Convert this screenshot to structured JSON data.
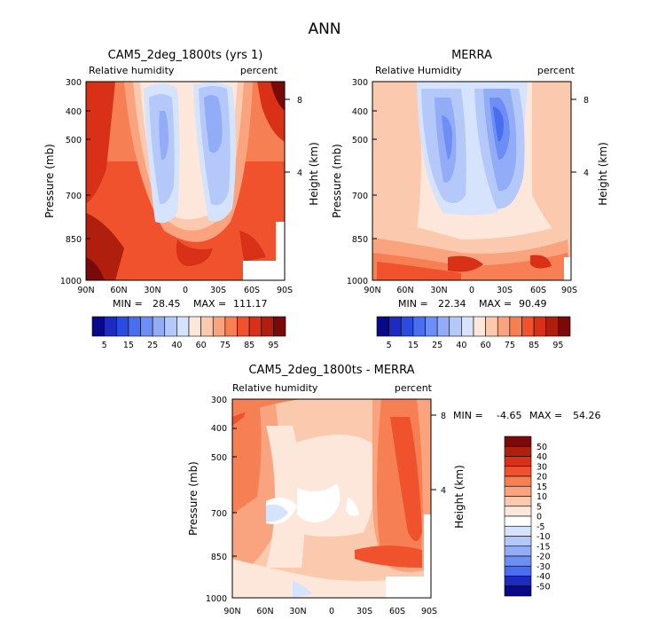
{
  "page_title": "ANN",
  "chart_data": [
    {
      "type": "heatmap",
      "title": "CAM5_2deg_1800ts (yrs 1)",
      "left_string": "Relative humidity",
      "right_string": "percent",
      "ylabel": "Pressure (mb)",
      "ylabel_right": "Height (km)",
      "x_ticks": [
        "90N",
        "60N",
        "30N",
        "0",
        "30S",
        "60S",
        "90S"
      ],
      "y_ticks": [
        "300",
        "400",
        "500",
        "700",
        "850",
        "1000"
      ],
      "y_ticks_right": [
        "8",
        "4"
      ],
      "min_text": "MIN =",
      "min_value": "28.45",
      "max_text": "MAX =",
      "max_value": "111.17",
      "colorbar_labels": [
        "5",
        "15",
        "25",
        "40",
        "60",
        "75",
        "85",
        "95"
      ],
      "colors": [
        "#08088a",
        "#1d2bc0",
        "#2a4be0",
        "#4a6ef0",
        "#6d8ff5",
        "#93acf7",
        "#b5c8fa",
        "#d6e3fc",
        "#fde7da",
        "#fbc9ad",
        "#f9a47f",
        "#f67f54",
        "#f0522d",
        "#d93117",
        "#b01e0e",
        "#7a0a0a"
      ]
    },
    {
      "type": "heatmap",
      "title": "MERRA",
      "left_string": "Relative Humidity",
      "right_string": "percent",
      "ylabel": "Pressure (mb)",
      "ylabel_right": "Height (km)",
      "x_ticks": [
        "90N",
        "60N",
        "30N",
        "0",
        "30S",
        "60S",
        "90S"
      ],
      "y_ticks": [
        "300",
        "400",
        "500",
        "700",
        "850",
        "1000"
      ],
      "y_ticks_right": [
        "8",
        "4"
      ],
      "min_text": "MIN =",
      "min_value": "22.34",
      "max_text": "MAX =",
      "max_value": "90.49",
      "colorbar_labels": [
        "5",
        "15",
        "25",
        "40",
        "60",
        "75",
        "85",
        "95"
      ],
      "colors": [
        "#08088a",
        "#1d2bc0",
        "#2a4be0",
        "#4a6ef0",
        "#6d8ff5",
        "#93acf7",
        "#b5c8fa",
        "#d6e3fc",
        "#fde7da",
        "#fbc9ad",
        "#f9a47f",
        "#f67f54",
        "#f0522d",
        "#d93117",
        "#b01e0e",
        "#7a0a0a"
      ]
    },
    {
      "type": "heatmap",
      "title": "CAM5_2deg_1800ts - MERRA",
      "left_string": "Relative humidity",
      "right_string": "percent",
      "ylabel": "Pressure (mb)",
      "ylabel_right": "Height (km)",
      "x_ticks": [
        "90N",
        "60N",
        "30N",
        "0",
        "30S",
        "60S",
        "90S"
      ],
      "y_ticks": [
        "300",
        "400",
        "500",
        "700",
        "850",
        "1000"
      ],
      "y_ticks_right": [
        "8",
        "4"
      ],
      "min_text": "MIN =",
      "min_value": "-4.65",
      "max_text": "MAX =",
      "max_value": "54.26",
      "colorbar_labels": [
        "50",
        "40",
        "30",
        "20",
        "15",
        "10",
        "5",
        "0",
        "-5",
        "-10",
        "-15",
        "-20",
        "-30",
        "-40",
        "-50"
      ],
      "colors": [
        "#7a0a0a",
        "#b01e0e",
        "#d93117",
        "#f0522d",
        "#f67f54",
        "#f9a47f",
        "#fbc9ad",
        "#fde7da",
        "#ffffff",
        "#d6e3fc",
        "#b5c8fa",
        "#93acf7",
        "#6d8ff5",
        "#4a6ef0",
        "#1d2bc0",
        "#08088a"
      ]
    }
  ]
}
